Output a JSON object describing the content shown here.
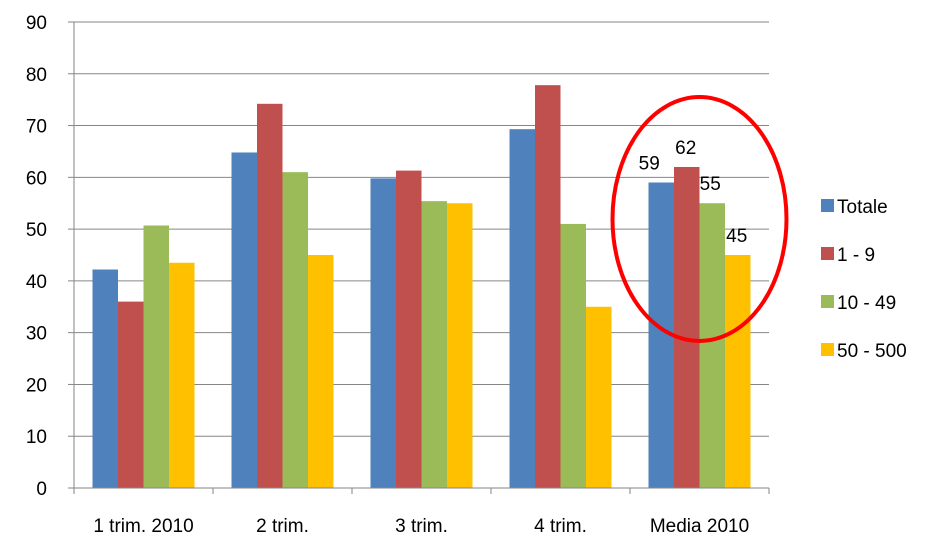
{
  "chart_data": {
    "type": "bar",
    "categories": [
      "1 trim. 2010",
      "2 trim.",
      "3 trim.",
      "4 trim.",
      "Media 2010"
    ],
    "series": [
      {
        "name": "Totale",
        "color": "#4F81BD",
        "values": [
          42.2,
          64.8,
          59.8,
          69.3,
          59
        ]
      },
      {
        "name": "1 - 9",
        "color": "#C0504D",
        "values": [
          36,
          74.2,
          61.3,
          77.8,
          62
        ]
      },
      {
        "name": "10 - 49",
        "color": "#9BBB59",
        "values": [
          50.7,
          61,
          55.4,
          51,
          55
        ]
      },
      {
        "name": "50 - 500",
        "color": "#FFC000",
        "values": [
          43.5,
          45,
          55,
          35,
          45
        ]
      }
    ],
    "ylim": [
      0,
      90
    ],
    "yticks": [
      0,
      10,
      20,
      30,
      40,
      50,
      60,
      70,
      80,
      90
    ],
    "grid": true,
    "legend": "right",
    "data_labels": [
      {
        "category": "Media 2010",
        "series": "Totale",
        "text": "59"
      },
      {
        "category": "Media 2010",
        "series": "1 - 9",
        "text": "62"
      },
      {
        "category": "Media 2010",
        "series": "10 - 49",
        "text": "55"
      },
      {
        "category": "Media 2010",
        "series": "50 - 500",
        "text": "45"
      }
    ],
    "annotation": {
      "type": "ellipse",
      "target": "Media 2010",
      "color": "#FF0000"
    }
  }
}
